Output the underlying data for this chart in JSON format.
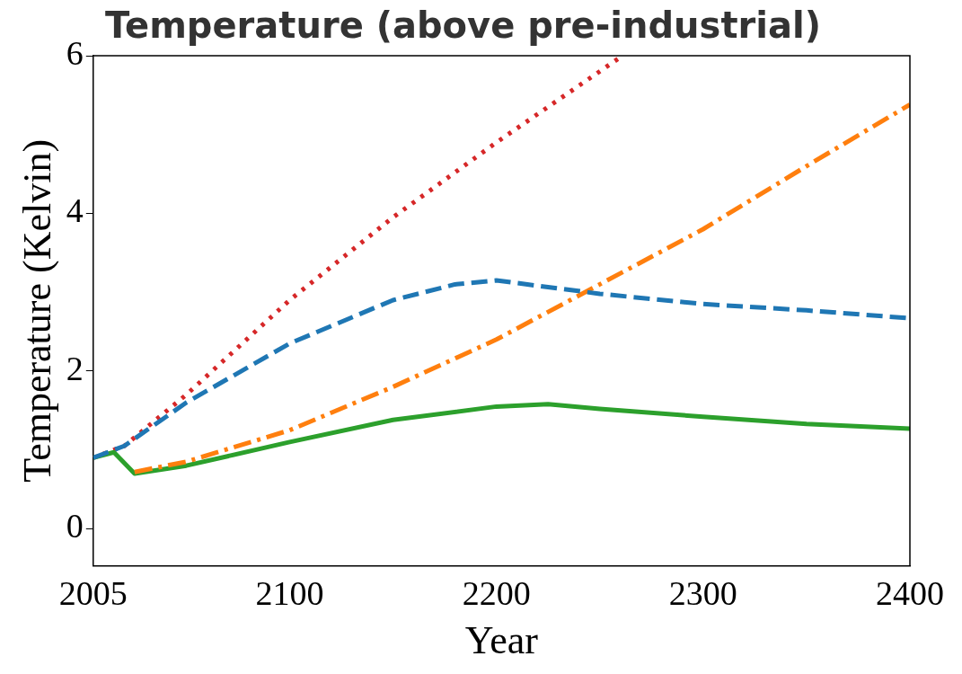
{
  "chart_data": {
    "type": "line",
    "title": "Temperature (above pre-industrial)",
    "xlabel": "Year",
    "ylabel": "Temperature (Kelvin)",
    "xlim": [
      2005,
      2400
    ],
    "xticks": [
      2005,
      2100,
      2200,
      2300,
      2400
    ],
    "ylim": [
      -0.47,
      6
    ],
    "yticks": [
      0,
      2,
      4,
      6
    ],
    "grid": false,
    "legend": false,
    "series": [
      {
        "color": "#1f77b4",
        "line_style": "dashed",
        "x": [
          2005,
          2020,
          2050,
          2100,
          2150,
          2180,
          2200,
          2250,
          2300,
          2350,
          2400
        ],
        "values": [
          0.9,
          1.05,
          1.6,
          2.35,
          2.9,
          3.1,
          3.15,
          2.98,
          2.85,
          2.77,
          2.67
        ]
      },
      {
        "color": "#ff7f0e",
        "line_style": "dashdot",
        "x": [
          2025,
          2050,
          2100,
          2150,
          2200,
          2250,
          2300,
          2350,
          2400
        ],
        "values": [
          0.72,
          0.85,
          1.25,
          1.8,
          2.4,
          3.1,
          3.8,
          4.6,
          5.38
        ]
      },
      {
        "color": "#2ca02c",
        "line_style": "solid",
        "x": [
          2005,
          2015,
          2025,
          2050,
          2100,
          2150,
          2200,
          2225,
          2250,
          2300,
          2350,
          2400
        ],
        "values": [
          0.9,
          0.97,
          0.7,
          0.8,
          1.1,
          1.38,
          1.55,
          1.58,
          1.52,
          1.42,
          1.33,
          1.27
        ]
      },
      {
        "color": "#d62728",
        "line_style": "dotted",
        "x": [
          2005,
          2020,
          2050,
          2100,
          2150,
          2200,
          2261
        ],
        "values": [
          0.9,
          1.05,
          1.7,
          2.9,
          3.95,
          4.9,
          6.0
        ]
      }
    ]
  }
}
